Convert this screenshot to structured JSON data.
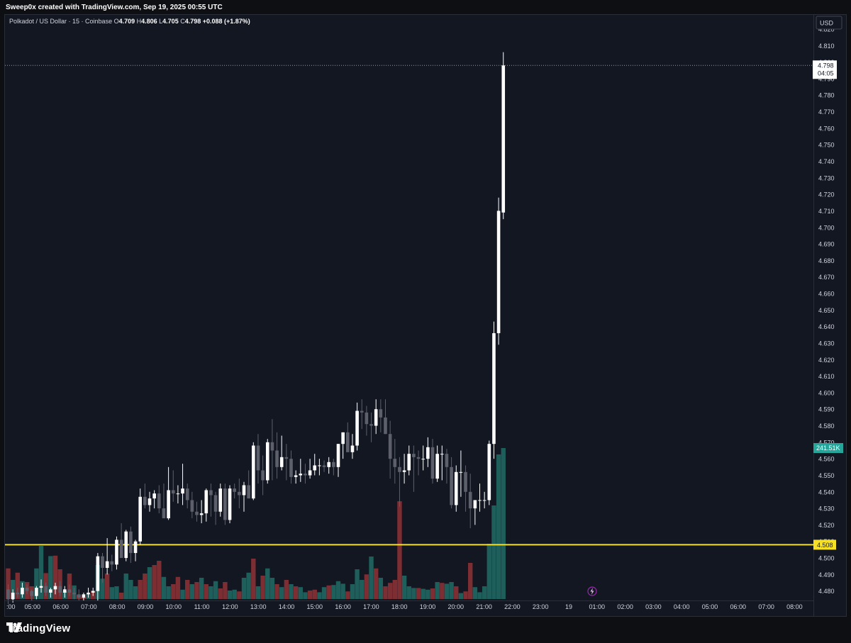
{
  "header": {
    "created_by": "Sweep0x created with TradingView.com, Sep 19, 2025 00:55 UTC"
  },
  "legend": {
    "symbol": "Polkadot / US Dollar · 15 · Coinbase",
    "o_label": "O",
    "o_value": "4.709",
    "h_label": "H",
    "h_value": "4.806",
    "l_label": "L",
    "l_value": "4.705",
    "c_label": "C",
    "c_value": "4.798",
    "change": "+0.088 (+1.87%)"
  },
  "axis": {
    "currency": "USD",
    "price_ticks": [
      "4.820",
      "4.810",
      "4.800",
      "4.790",
      "4.780",
      "4.770",
      "4.760",
      "4.750",
      "4.740",
      "4.730",
      "4.720",
      "4.710",
      "4.700",
      "4.690",
      "4.680",
      "4.670",
      "4.660",
      "4.650",
      "4.640",
      "4.630",
      "4.620",
      "4.610",
      "4.600",
      "4.590",
      "4.580",
      "4.570",
      "4.560",
      "4.550",
      "4.540",
      "4.530",
      "4.520",
      "4.510",
      "4.500",
      "4.490",
      "4.480"
    ],
    "time_ticks": [
      ":00",
      "05:00",
      "06:00",
      "07:00",
      "08:00",
      "09:00",
      "10:00",
      "11:00",
      "12:00",
      "13:00",
      "14:00",
      "15:00",
      "16:00",
      "17:00",
      "18:00",
      "19:00",
      "20:00",
      "21:00",
      "22:00",
      "23:00",
      "19",
      "01:00",
      "02:00",
      "03:00",
      "04:00",
      "05:00",
      "06:00",
      "07:00",
      "08:00"
    ]
  },
  "labels": {
    "last_price": "4.798",
    "countdown": "04:05",
    "volume": "241.51K",
    "level": "4.508"
  },
  "colors": {
    "background": "#131722",
    "bull_candle": "#ffffff",
    "bear_candle": "#5d606b",
    "bull_volume": "#1e5f5b",
    "bear_volume": "#7c2e33",
    "level_line": "#f5e027",
    "volume_label": "#26a69a"
  },
  "footer": {
    "brand": "TradingView"
  },
  "chart_data": {
    "type": "candlestick",
    "level_line": 4.508,
    "y_range": [
      4.476,
      4.826
    ],
    "candles": [
      [
        4.481,
        4.484,
        4.472,
        4.475,
        0.72,
        0
      ],
      [
        4.475,
        4.481,
        4.473,
        4.479,
        0.45,
        1
      ],
      [
        4.479,
        4.482,
        4.476,
        4.478,
        0.62,
        0
      ],
      [
        4.478,
        4.485,
        4.476,
        4.482,
        0.42,
        1
      ],
      [
        4.482,
        4.484,
        4.478,
        4.48,
        0.4,
        0
      ],
      [
        4.48,
        4.481,
        4.474,
        4.477,
        0.3,
        0
      ],
      [
        4.477,
        4.483,
        4.475,
        4.482,
        0.72,
        1
      ],
      [
        4.482,
        4.487,
        4.479,
        4.483,
        1.25,
        1
      ],
      [
        4.483,
        4.485,
        4.477,
        4.479,
        0.61,
        0
      ],
      [
        4.479,
        4.482,
        4.476,
        4.481,
        1.01,
        1
      ],
      [
        4.481,
        4.485,
        4.478,
        4.483,
        1.02,
        0
      ],
      [
        4.483,
        4.486,
        4.477,
        4.479,
        0.7,
        0
      ],
      [
        4.479,
        4.483,
        4.476,
        4.481,
        0.18,
        1
      ],
      [
        4.481,
        4.484,
        4.477,
        4.479,
        0.6,
        0
      ],
      [
        4.479,
        4.482,
        4.475,
        4.478,
        0.32,
        1
      ],
      [
        4.478,
        4.481,
        4.474,
        4.476,
        0.1,
        0
      ],
      [
        4.476,
        4.479,
        4.474,
        4.478,
        0.05,
        0
      ],
      [
        4.478,
        4.482,
        4.476,
        4.479,
        0.12,
        1
      ],
      [
        4.479,
        4.482,
        4.477,
        4.48,
        0.2,
        0
      ],
      [
        4.48,
        4.503,
        4.474,
        4.501,
        0.8,
        1
      ],
      [
        4.501,
        4.503,
        4.485,
        4.494,
        0.48,
        1
      ],
      [
        4.494,
        4.512,
        4.49,
        4.498,
        0.6,
        0
      ],
      [
        4.498,
        4.502,
        4.492,
        4.496,
        0.28,
        1
      ],
      [
        4.496,
        4.513,
        4.493,
        4.511,
        0.3,
        1
      ],
      [
        4.511,
        4.521,
        4.503,
        4.5,
        0.15,
        0
      ],
      [
        4.5,
        4.517,
        4.498,
        4.516,
        0.6,
        1
      ],
      [
        4.516,
        4.519,
        4.497,
        4.503,
        0.45,
        1
      ],
      [
        4.503,
        4.511,
        4.498,
        4.51,
        0.3,
        1
      ],
      [
        4.51,
        4.542,
        4.508,
        4.537,
        0.45,
        0
      ],
      [
        4.537,
        4.545,
        4.53,
        4.532,
        0.6,
        0
      ],
      [
        4.532,
        4.54,
        4.528,
        4.536,
        0.75,
        1
      ],
      [
        4.536,
        4.541,
        4.53,
        4.539,
        0.8,
        0
      ],
      [
        4.539,
        4.544,
        4.527,
        4.53,
        0.9,
        0
      ],
      [
        4.53,
        4.545,
        4.526,
        4.524,
        0.52,
        1
      ],
      [
        4.524,
        4.555,
        4.523,
        4.541,
        0.3,
        1
      ],
      [
        4.541,
        4.553,
        4.534,
        4.539,
        0.35,
        0
      ],
      [
        4.539,
        4.544,
        4.533,
        4.539,
        0.52,
        0
      ],
      [
        4.539,
        4.557,
        4.532,
        4.542,
        0.22,
        1
      ],
      [
        4.542,
        4.545,
        4.53,
        4.535,
        0.45,
        0
      ],
      [
        4.535,
        4.54,
        4.524,
        4.528,
        0.35,
        1
      ],
      [
        4.528,
        4.534,
        4.522,
        4.526,
        0.4,
        0
      ],
      [
        4.526,
        4.535,
        4.521,
        4.527,
        0.5,
        1
      ],
      [
        4.527,
        4.542,
        4.522,
        4.541,
        0.35,
        0
      ],
      [
        4.541,
        4.545,
        4.525,
        4.538,
        0.3,
        1
      ],
      [
        4.538,
        4.54,
        4.52,
        4.528,
        0.42,
        1
      ],
      [
        4.528,
        4.545,
        4.525,
        4.542,
        0.25,
        0
      ],
      [
        4.542,
        4.545,
        4.52,
        4.523,
        0.4,
        0
      ],
      [
        4.523,
        4.544,
        4.521,
        4.542,
        0.2,
        1
      ],
      [
        4.542,
        4.545,
        4.536,
        4.54,
        0.22,
        1
      ],
      [
        4.54,
        4.548,
        4.53,
        4.538,
        0.18,
        0
      ],
      [
        4.538,
        4.546,
        4.528,
        4.544,
        0.5,
        1
      ],
      [
        4.544,
        4.553,
        4.538,
        4.536,
        0.62,
        1
      ],
      [
        4.536,
        4.57,
        4.535,
        4.568,
        0.95,
        0
      ],
      [
        4.568,
        4.575,
        4.545,
        4.553,
        0.3,
        1
      ],
      [
        4.553,
        4.562,
        4.538,
        4.547,
        0.55,
        0
      ],
      [
        4.547,
        4.572,
        4.545,
        4.57,
        0.72,
        1
      ],
      [
        4.57,
        4.584,
        4.547,
        4.565,
        0.5,
        1
      ],
      [
        4.565,
        4.576,
        4.548,
        4.555,
        0.35,
        0
      ],
      [
        4.555,
        4.574,
        4.553,
        4.561,
        0.28,
        1
      ],
      [
        4.561,
        4.569,
        4.547,
        4.56,
        0.45,
        0
      ],
      [
        4.56,
        4.565,
        4.545,
        4.549,
        0.35,
        1
      ],
      [
        4.549,
        4.553,
        4.545,
        4.55,
        0.3,
        0
      ],
      [
        4.55,
        4.56,
        4.546,
        4.551,
        0.28,
        1
      ],
      [
        4.551,
        4.557,
        4.545,
        4.55,
        0.16,
        1
      ],
      [
        4.55,
        4.56,
        4.548,
        4.553,
        0.2,
        0
      ],
      [
        4.553,
        4.563,
        4.55,
        4.556,
        0.22,
        0
      ],
      [
        4.556,
        4.56,
        4.55,
        4.556,
        0.16,
        1
      ],
      [
        4.556,
        4.559,
        4.552,
        4.555,
        0.28,
        1
      ],
      [
        4.555,
        4.561,
        4.551,
        4.558,
        0.32,
        0
      ],
      [
        4.558,
        4.56,
        4.55,
        4.555,
        0.33,
        1
      ],
      [
        4.555,
        4.569,
        4.549,
        4.569,
        0.42,
        1
      ],
      [
        4.569,
        4.576,
        4.56,
        4.576,
        0.36,
        1
      ],
      [
        4.576,
        4.582,
        4.564,
        4.564,
        0.18,
        0
      ],
      [
        4.564,
        4.575,
        4.56,
        4.568,
        0.35,
        1
      ],
      [
        4.568,
        4.594,
        4.565,
        4.589,
        0.7,
        1
      ],
      [
        4.589,
        4.596,
        4.578,
        4.588,
        0.45,
        1
      ],
      [
        4.588,
        4.592,
        4.574,
        4.581,
        0.58,
        0
      ],
      [
        4.581,
        4.588,
        4.57,
        4.58,
        1.0,
        1
      ],
      [
        4.58,
        4.596,
        4.575,
        4.59,
        0.72,
        0
      ],
      [
        4.59,
        4.596,
        4.576,
        4.585,
        0.5,
        1
      ],
      [
        4.585,
        4.596,
        4.575,
        4.575,
        0.3,
        0
      ],
      [
        4.575,
        4.583,
        4.548,
        4.56,
        0.38,
        0
      ],
      [
        4.56,
        4.572,
        4.545,
        4.555,
        0.45,
        0
      ],
      [
        4.555,
        4.561,
        4.531,
        4.552,
        2.3,
        0
      ],
      [
        4.552,
        4.563,
        4.545,
        4.553,
        0.55,
        1
      ],
      [
        4.553,
        4.568,
        4.55,
        4.563,
        0.3,
        1
      ],
      [
        4.563,
        4.568,
        4.54,
        4.561,
        0.26,
        1
      ],
      [
        4.561,
        4.565,
        4.55,
        4.56,
        0.26,
        0
      ],
      [
        4.56,
        4.568,
        4.553,
        4.56,
        0.24,
        1
      ],
      [
        4.56,
        4.573,
        4.555,
        4.567,
        0.22,
        1
      ],
      [
        4.567,
        4.572,
        4.545,
        4.548,
        0.25,
        0
      ],
      [
        4.548,
        4.568,
        4.546,
        4.563,
        0.4,
        1
      ],
      [
        4.563,
        4.568,
        4.547,
        4.563,
        0.38,
        0
      ],
      [
        4.563,
        4.566,
        4.545,
        4.555,
        0.36,
        1
      ],
      [
        4.555,
        4.561,
        4.53,
        4.532,
        0.4,
        1
      ],
      [
        4.532,
        4.556,
        4.528,
        4.552,
        0.3,
        0
      ],
      [
        4.552,
        4.565,
        4.537,
        4.552,
        0.14,
        1
      ],
      [
        4.552,
        4.556,
        4.528,
        4.54,
        0.18,
        0
      ],
      [
        4.54,
        4.551,
        4.518,
        4.53,
        0.85,
        0
      ],
      [
        4.53,
        4.535,
        4.52,
        4.535,
        0.28,
        1
      ],
      [
        4.535,
        4.545,
        4.528,
        4.535,
        0.16,
        1
      ],
      [
        4.535,
        4.54,
        4.53,
        4.535,
        0.3,
        1
      ],
      [
        4.535,
        4.571,
        4.532,
        4.569,
        1.3,
        1
      ],
      [
        4.569,
        4.643,
        4.56,
        4.636,
        2.2,
        1
      ],
      [
        4.636,
        4.718,
        4.629,
        4.71,
        3.4,
        1
      ],
      [
        4.709,
        4.806,
        4.705,
        4.798,
        3.55,
        1
      ]
    ]
  }
}
